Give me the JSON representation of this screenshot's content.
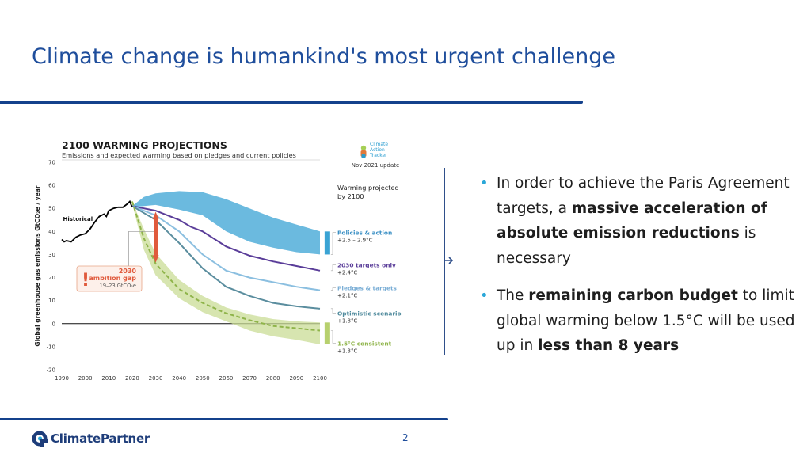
{
  "slide": {
    "title": "Climate change is humankind's most urgent challenge",
    "page_number": "2"
  },
  "bullets": [
    {
      "parts": [
        {
          "text": "In order to achieve the Paris Agreement targets, a ",
          "bold": false
        },
        {
          "text": "massive acceleration of absolute emission reductions",
          "bold": true
        },
        {
          "text": " is necessary",
          "bold": false
        }
      ]
    },
    {
      "parts": [
        {
          "text": "The ",
          "bold": false
        },
        {
          "text": "remaining carbon budget",
          "bold": true
        },
        {
          "text": " to limit global warming below 1.5°C will be used up in ",
          "bold": false
        },
        {
          "text": "less than 8 years",
          "bold": true
        }
      ]
    }
  ],
  "logo": {
    "text": "ClimatePartner",
    "icon": "climatepartner-logo-icon",
    "color": "#1e3d7a"
  },
  "chart_data": {
    "type": "line",
    "title": "2100 WARMING PROJECTIONS",
    "subtitle": "Emissions and expected warming based on pledges and current policies",
    "ylabel": "Global greenhouse gas emissions GtCO₂e / year",
    "xlabel": "",
    "badge": {
      "line1": "Climate",
      "line2": "Action",
      "line3": "Tracker"
    },
    "update_note": "Nov 2021 update",
    "warming_heading": [
      "Warming projected",
      "by 2100"
    ],
    "x_ticks": [
      "1990",
      "2000",
      "2010",
      "2020",
      "2030",
      "2040",
      "2050",
      "2060",
      "2070",
      "2080",
      "2090",
      "2100"
    ],
    "y_ticks": [
      "70",
      "60",
      "50",
      "40",
      "30",
      "20",
      "10",
      "0",
      "-10",
      "-20"
    ],
    "xlim": [
      1990,
      2100
    ],
    "ylim": [
      -20,
      70
    ],
    "historical_label": "Historical",
    "gap_annotation": {
      "line1": "2030",
      "line2": "ambition gap",
      "line3": "19–23 GtCO₂e"
    },
    "series": [
      {
        "name": "Historical",
        "color": "#000000",
        "x": [
          1990,
          1991,
          1992,
          1994,
          1996,
          1998,
          2000,
          2002,
          2004,
          2006,
          2008,
          2009,
          2010,
          2012,
          2014,
          2016,
          2018,
          2019,
          2020
        ],
        "y": [
          36.5,
          35.5,
          36,
          35.5,
          37.5,
          38.5,
          39,
          41,
          44,
          46.5,
          47.5,
          46.5,
          49,
          50,
          50.5,
          50.5,
          52,
          53,
          50.5
        ]
      },
      {
        "name": "Policies & action",
        "value": "+2.5 – 2.9°C",
        "color": "#3aa3d4",
        "x": [
          2020,
          2025,
          2030,
          2040,
          2050,
          2060,
          2070,
          2080,
          2090,
          2100
        ],
        "upper": [
          51,
          55,
          56.5,
          57.5,
          57,
          54,
          50,
          46,
          43,
          40
        ],
        "lower": [
          50.5,
          51,
          51.5,
          49.5,
          47,
          40,
          35.5,
          33,
          31,
          30
        ]
      },
      {
        "name": "2030 targets only",
        "value": "+2.4°C",
        "color": "#5a3d99",
        "x": [
          2020,
          2030,
          2040,
          2045,
          2050,
          2060,
          2070,
          2080,
          2090,
          2100
        ],
        "y": [
          51,
          49,
          45,
          42,
          40,
          33.5,
          29.5,
          27,
          25,
          23
        ]
      },
      {
        "name": "Pledges & targets",
        "value": "+2.1°C",
        "color": "#8bbfe0",
        "x": [
          2020,
          2030,
          2040,
          2050,
          2060,
          2070,
          2080,
          2090,
          2100
        ],
        "y": [
          51,
          47,
          40,
          30,
          23,
          20,
          18,
          16,
          14.5
        ]
      },
      {
        "name": "Optimistic scenario",
        "value": "+1.8°C",
        "color": "#5a8d9e",
        "x": [
          2020,
          2030,
          2040,
          2050,
          2060,
          2070,
          2080,
          2090,
          2100
        ],
        "y": [
          51,
          45,
          35,
          24,
          16,
          12,
          9,
          7.5,
          6.5
        ]
      },
      {
        "name": "1.5°C consistent",
        "value": "+1.3°C",
        "color": "#a9c85b",
        "x": [
          2020,
          2025,
          2030,
          2040,
          2050,
          2060,
          2070,
          2080,
          2090,
          2100
        ],
        "y": [
          53,
          37,
          26,
          15,
          9,
          4.5,
          1.5,
          -1,
          -2,
          -3
        ],
        "upper": [
          53,
          41,
          30.5,
          19,
          12,
          7,
          4,
          2,
          1,
          0.5
        ],
        "lower": [
          52,
          32,
          21,
          11,
          5,
          1,
          -3,
          -5.5,
          -7,
          -9
        ]
      }
    ],
    "bar_right_x": 2104
  }
}
